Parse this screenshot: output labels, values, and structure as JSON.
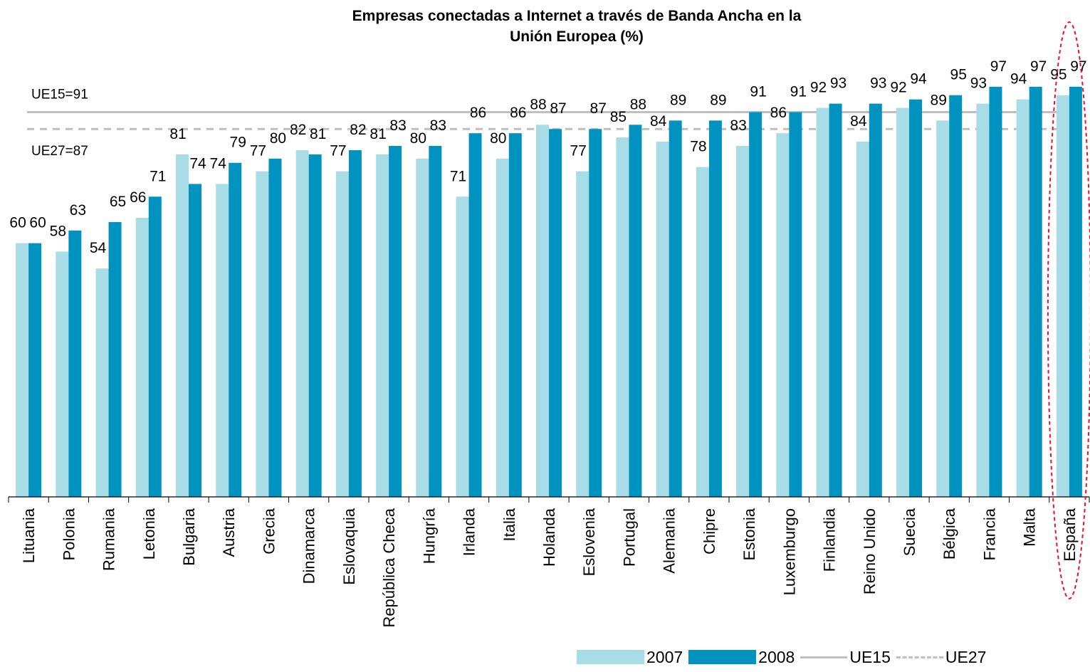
{
  "title_line1": "Empresas conectadas a Internet  a través de Banda Ancha en la",
  "title_line2": "Unión Europea (%)",
  "chart_data": {
    "type": "bar",
    "title": "Empresas conectadas a Internet  a través de Banda Ancha en la Unión Europea (%)",
    "categories": [
      "Lituania",
      "Polonia",
      "Rumania",
      "Letonia",
      "Bulgaria",
      "Austria",
      "Grecia",
      "Dinamarca",
      "Eslovaquia",
      "República Checa",
      "Hungría",
      "Irlanda",
      "Italia",
      "Holanda",
      "Eslovenia",
      "Portugal",
      "Alemania",
      "Chipre",
      "Estonia",
      "Luxemburgo",
      "Finlandia",
      "Reino Unido",
      "Suecia",
      "Bélgica",
      "Francia",
      "Malta",
      "España"
    ],
    "series": [
      {
        "name": "2007",
        "color": "#a8dce6",
        "values": [
          60,
          58,
          54,
          66,
          81,
          74,
          77,
          82,
          77,
          81,
          80,
          71,
          80,
          88,
          77,
          85,
          84,
          78,
          83,
          86,
          92,
          84,
          92,
          89,
          93,
          94,
          95
        ]
      },
      {
        "name": "2008",
        "color": "#0093bf",
        "values": [
          60,
          63,
          65,
          71,
          74,
          79,
          80,
          81,
          82,
          83,
          83,
          86,
          86,
          87,
          87,
          88,
          89,
          89,
          91,
          91,
          93,
          93,
          94,
          95,
          97,
          97,
          97
        ]
      }
    ],
    "reference_lines": [
      {
        "name": "UE15",
        "value": 91,
        "label": "UE15=91",
        "style": "solid",
        "color": "#bfbfbf"
      },
      {
        "name": "UE27",
        "value": 87,
        "label": "UE27=87",
        "style": "dashed",
        "color": "#bfbfbf"
      }
    ],
    "ylim": [
      0,
      100
    ],
    "legend": "bottom-right",
    "highlight": {
      "category": "España",
      "style": "red dashed ellipse"
    }
  }
}
